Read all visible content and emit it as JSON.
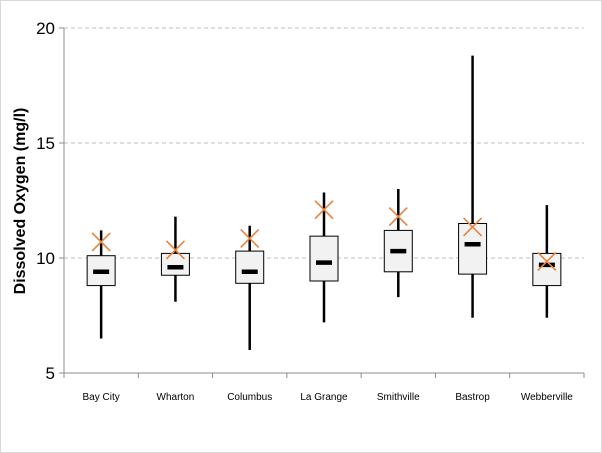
{
  "chart_data": {
    "type": "box",
    "title": "",
    "xlabel": "",
    "ylabel": "Dissolved Oxygen (mg/l)",
    "ylim": [
      5,
      20
    ],
    "yticks": [
      5,
      10,
      15,
      20
    ],
    "grid": "horizontal-dashed",
    "legend": "none",
    "categories": [
      "Bay City",
      "Wharton",
      "Columbus",
      "La Grange",
      "Smithville",
      "Bastrop",
      "Webberville"
    ],
    "series": [
      {
        "min": [
          6.5,
          8.1,
          6.0,
          7.2,
          8.3,
          7.4,
          7.4
        ],
        "q1": [
          8.8,
          9.25,
          8.9,
          9.0,
          9.4,
          9.3,
          8.8
        ],
        "median": [
          9.4,
          9.6,
          9.4,
          9.8,
          10.3,
          10.6,
          9.7
        ],
        "q3": [
          10.1,
          10.2,
          10.3,
          10.95,
          11.2,
          11.5,
          10.2
        ],
        "max": [
          11.2,
          11.8,
          11.4,
          12.85,
          13.0,
          18.8,
          12.3
        ],
        "mean": [
          10.7,
          10.35,
          10.85,
          12.1,
          11.8,
          11.35,
          9.85
        ]
      }
    ],
    "colors": {
      "box_fill": "#f2f2f2",
      "box_edge": "#000000",
      "mean_marker": "#e8843e",
      "grid": "#bfbfbf"
    }
  }
}
